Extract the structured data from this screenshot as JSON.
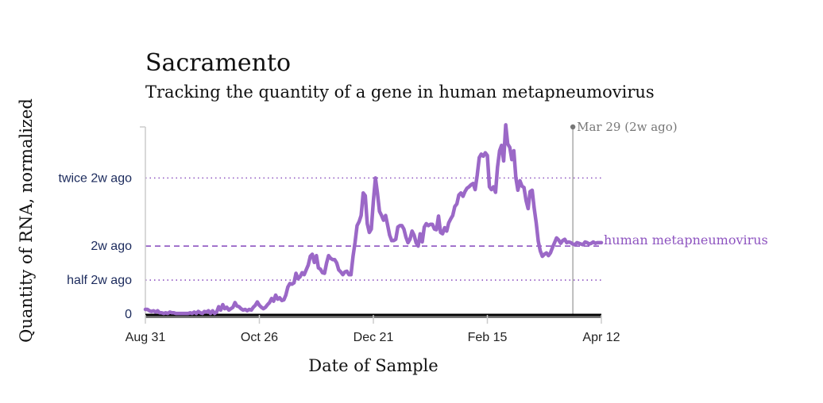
{
  "title": "Sacramento",
  "subtitle": "Tracking the quantity of a gene in human metapneumovirus",
  "chart_data": {
    "type": "line",
    "title": "Sacramento",
    "subtitle": "Tracking the quantity of a gene in human metapneumovirus",
    "xlabel": "Date of Sample",
    "ylabel": "Quantity of RNA, normalized",
    "x_tick_labels": [
      "Aug 31",
      "Oct 26",
      "Dec 21",
      "Feb 15",
      "Apr 12"
    ],
    "x_tick_days": [
      0,
      56,
      112,
      168,
      224
    ],
    "x_range_days": [
      0,
      224
    ],
    "y_range": [
      0,
      2.75
    ],
    "reference_lines": [
      {
        "label": "twice 2w ago",
        "value": 2.0,
        "style": "dotted"
      },
      {
        "label": "2w ago",
        "value": 1.0,
        "style": "dashed"
      },
      {
        "label": "half 2w ago",
        "value": 0.5,
        "style": "dotted"
      },
      {
        "label": "0",
        "value": 0,
        "style": "axis"
      }
    ],
    "marker": {
      "label": "Mar 29 (2w ago)",
      "day": 210
    },
    "series": [
      {
        "name": "human metapneumovirus",
        "color": "#9b68c7",
        "points": [
          [
            0,
            0.07
          ],
          [
            1,
            0.07
          ],
          [
            2,
            0.05
          ],
          [
            3,
            0.04
          ],
          [
            4,
            0.05
          ],
          [
            5,
            0.03
          ],
          [
            6,
            0.05
          ],
          [
            7,
            0.02
          ],
          [
            8,
            0.02
          ],
          [
            9,
            0.01
          ],
          [
            10,
            0.02
          ],
          [
            11,
            0.01
          ],
          [
            12,
            0.03
          ],
          [
            13,
            0.02
          ],
          [
            14,
            0.02
          ],
          [
            15,
            0.01
          ],
          [
            16,
            0.01
          ],
          [
            17,
            0.01
          ],
          [
            18,
            0.01
          ],
          [
            19,
            0.01
          ],
          [
            20,
            0.01
          ],
          [
            21,
            0.01
          ],
          [
            22,
            0.02
          ],
          [
            23,
            0.01
          ],
          [
            24,
            0.03
          ],
          [
            25,
            0.01
          ],
          [
            26,
            0.04
          ],
          [
            27,
            0.02
          ],
          [
            28,
            0.01
          ],
          [
            29,
            0.04
          ],
          [
            30,
            0.03
          ],
          [
            31,
            0.05
          ],
          [
            32,
            0.01
          ],
          [
            33,
            0.05
          ],
          [
            34,
            0.01
          ],
          [
            35,
            0.03
          ],
          [
            36,
            0.11
          ],
          [
            37,
            0.06
          ],
          [
            38,
            0.14
          ],
          [
            39,
            0.08
          ],
          [
            40,
            0.1
          ],
          [
            41,
            0.06
          ],
          [
            42,
            0.08
          ],
          [
            43,
            0.1
          ],
          [
            44,
            0.17
          ],
          [
            45,
            0.12
          ],
          [
            46,
            0.11
          ],
          [
            47,
            0.08
          ],
          [
            48,
            0.06
          ],
          [
            49,
            0.07
          ],
          [
            50,
            0.05
          ],
          [
            51,
            0.07
          ],
          [
            52,
            0.06
          ],
          [
            53,
            0.1
          ],
          [
            54,
            0.13
          ],
          [
            55,
            0.18
          ],
          [
            56,
            0.13
          ],
          [
            57,
            0.1
          ],
          [
            58,
            0.08
          ],
          [
            59,
            0.1
          ],
          [
            60,
            0.14
          ],
          [
            61,
            0.17
          ],
          [
            62,
            0.23
          ],
          [
            63,
            0.19
          ],
          [
            64,
            0.28
          ],
          [
            65,
            0.22
          ],
          [
            66,
            0.24
          ],
          [
            67,
            0.2
          ],
          [
            68,
            0.21
          ],
          [
            69,
            0.28
          ],
          [
            70,
            0.4
          ],
          [
            71,
            0.45
          ],
          [
            72,
            0.44
          ],
          [
            73,
            0.46
          ],
          [
            74,
            0.6
          ],
          [
            75,
            0.52
          ],
          [
            76,
            0.55
          ],
          [
            77,
            0.61
          ],
          [
            78,
            0.58
          ],
          [
            79,
            0.65
          ],
          [
            80,
            0.72
          ],
          [
            81,
            0.85
          ],
          [
            82,
            0.88
          ],
          [
            83,
            0.76
          ],
          [
            84,
            0.86
          ],
          [
            85,
            0.68
          ],
          [
            86,
            0.66
          ],
          [
            87,
            0.61
          ],
          [
            88,
            0.6
          ],
          [
            89,
            0.75
          ],
          [
            90,
            0.86
          ],
          [
            91,
            0.82
          ],
          [
            92,
            0.8
          ],
          [
            93,
            0.8
          ],
          [
            94,
            0.75
          ],
          [
            95,
            0.65
          ],
          [
            96,
            0.62
          ],
          [
            97,
            0.58
          ],
          [
            98,
            0.62
          ],
          [
            99,
            0.63
          ],
          [
            100,
            0.58
          ],
          [
            101,
            0.58
          ],
          [
            102,
            0.85
          ],
          [
            103,
            1.05
          ],
          [
            104,
            1.3
          ],
          [
            105,
            1.36
          ],
          [
            106,
            1.45
          ],
          [
            107,
            1.78
          ],
          [
            108,
            1.74
          ],
          [
            109,
            1.33
          ],
          [
            110,
            1.2
          ],
          [
            111,
            1.25
          ],
          [
            112,
            1.66
          ],
          [
            113,
            2.0
          ],
          [
            114,
            1.78
          ],
          [
            115,
            1.51
          ],
          [
            116,
            1.45
          ],
          [
            117,
            1.38
          ],
          [
            118,
            1.45
          ],
          [
            119,
            1.31
          ],
          [
            120,
            1.16
          ],
          [
            121,
            1.08
          ],
          [
            122,
            1.08
          ],
          [
            123,
            1.1
          ],
          [
            124,
            1.28
          ],
          [
            125,
            1.3
          ],
          [
            126,
            1.3
          ],
          [
            127,
            1.25
          ],
          [
            128,
            1.13
          ],
          [
            129,
            1.05
          ],
          [
            130,
            1.1
          ],
          [
            131,
            1.22
          ],
          [
            132,
            1.16
          ],
          [
            133,
            1.05
          ],
          [
            134,
            1.0
          ],
          [
            135,
            1.18
          ],
          [
            136,
            1.06
          ],
          [
            137,
            1.28
          ],
          [
            138,
            1.33
          ],
          [
            139,
            1.3
          ],
          [
            140,
            1.32
          ],
          [
            141,
            1.32
          ],
          [
            142,
            1.25
          ],
          [
            143,
            1.24
          ],
          [
            144,
            1.44
          ],
          [
            145,
            1.2
          ],
          [
            146,
            1.18
          ],
          [
            147,
            1.27
          ],
          [
            148,
            1.22
          ],
          [
            149,
            1.34
          ],
          [
            150,
            1.4
          ],
          [
            151,
            1.45
          ],
          [
            152,
            1.58
          ],
          [
            153,
            1.62
          ],
          [
            154,
            1.75
          ],
          [
            155,
            1.78
          ],
          [
            156,
            1.73
          ],
          [
            157,
            1.8
          ],
          [
            158,
            1.85
          ],
          [
            159,
            1.87
          ],
          [
            160,
            1.9
          ],
          [
            161,
            1.92
          ],
          [
            162,
            1.83
          ],
          [
            163,
            2.04
          ],
          [
            164,
            2.3
          ],
          [
            165,
            2.35
          ],
          [
            166,
            2.32
          ],
          [
            167,
            2.37
          ],
          [
            168,
            2.33
          ],
          [
            169,
            1.87
          ],
          [
            170,
            1.83
          ],
          [
            171,
            1.87
          ],
          [
            172,
            1.79
          ],
          [
            173,
            2.16
          ],
          [
            174,
            2.4
          ],
          [
            175,
            2.48
          ],
          [
            176,
            2.25
          ],
          [
            177,
            2.78
          ],
          [
            178,
            2.5
          ],
          [
            179,
            2.45
          ],
          [
            180,
            2.27
          ],
          [
            181,
            2.4
          ],
          [
            182,
            2.0
          ],
          [
            183,
            1.82
          ],
          [
            184,
            1.96
          ],
          [
            185,
            1.88
          ],
          [
            186,
            1.86
          ],
          [
            187,
            1.67
          ],
          [
            188,
            1.55
          ],
          [
            189,
            1.8
          ],
          [
            190,
            1.82
          ],
          [
            191,
            1.56
          ],
          [
            192,
            1.34
          ],
          [
            193,
            1.07
          ],
          [
            194,
            0.93
          ],
          [
            195,
            0.85
          ],
          [
            196,
            0.88
          ],
          [
            197,
            0.9
          ],
          [
            198,
            0.86
          ],
          [
            199,
            0.9
          ],
          [
            200,
            0.98
          ],
          [
            201,
            1.05
          ],
          [
            202,
            1.12
          ],
          [
            203,
            1.09
          ],
          [
            204,
            1.04
          ],
          [
            205,
            1.08
          ],
          [
            206,
            1.1
          ],
          [
            207,
            1.05
          ],
          [
            208,
            1.06
          ],
          [
            209,
            1.05
          ],
          [
            210,
            1.03
          ],
          [
            211,
            1.02
          ],
          [
            212,
            1.05
          ],
          [
            213,
            1.04
          ],
          [
            214,
            1.03
          ],
          [
            215,
            1.02
          ],
          [
            216,
            1.06
          ],
          [
            217,
            1.05
          ],
          [
            218,
            1.03
          ],
          [
            219,
            1.04
          ],
          [
            220,
            1.06
          ],
          [
            221,
            1.04
          ],
          [
            222,
            1.05
          ],
          [
            223,
            1.05
          ],
          [
            224,
            1.05
          ]
        ]
      }
    ]
  }
}
